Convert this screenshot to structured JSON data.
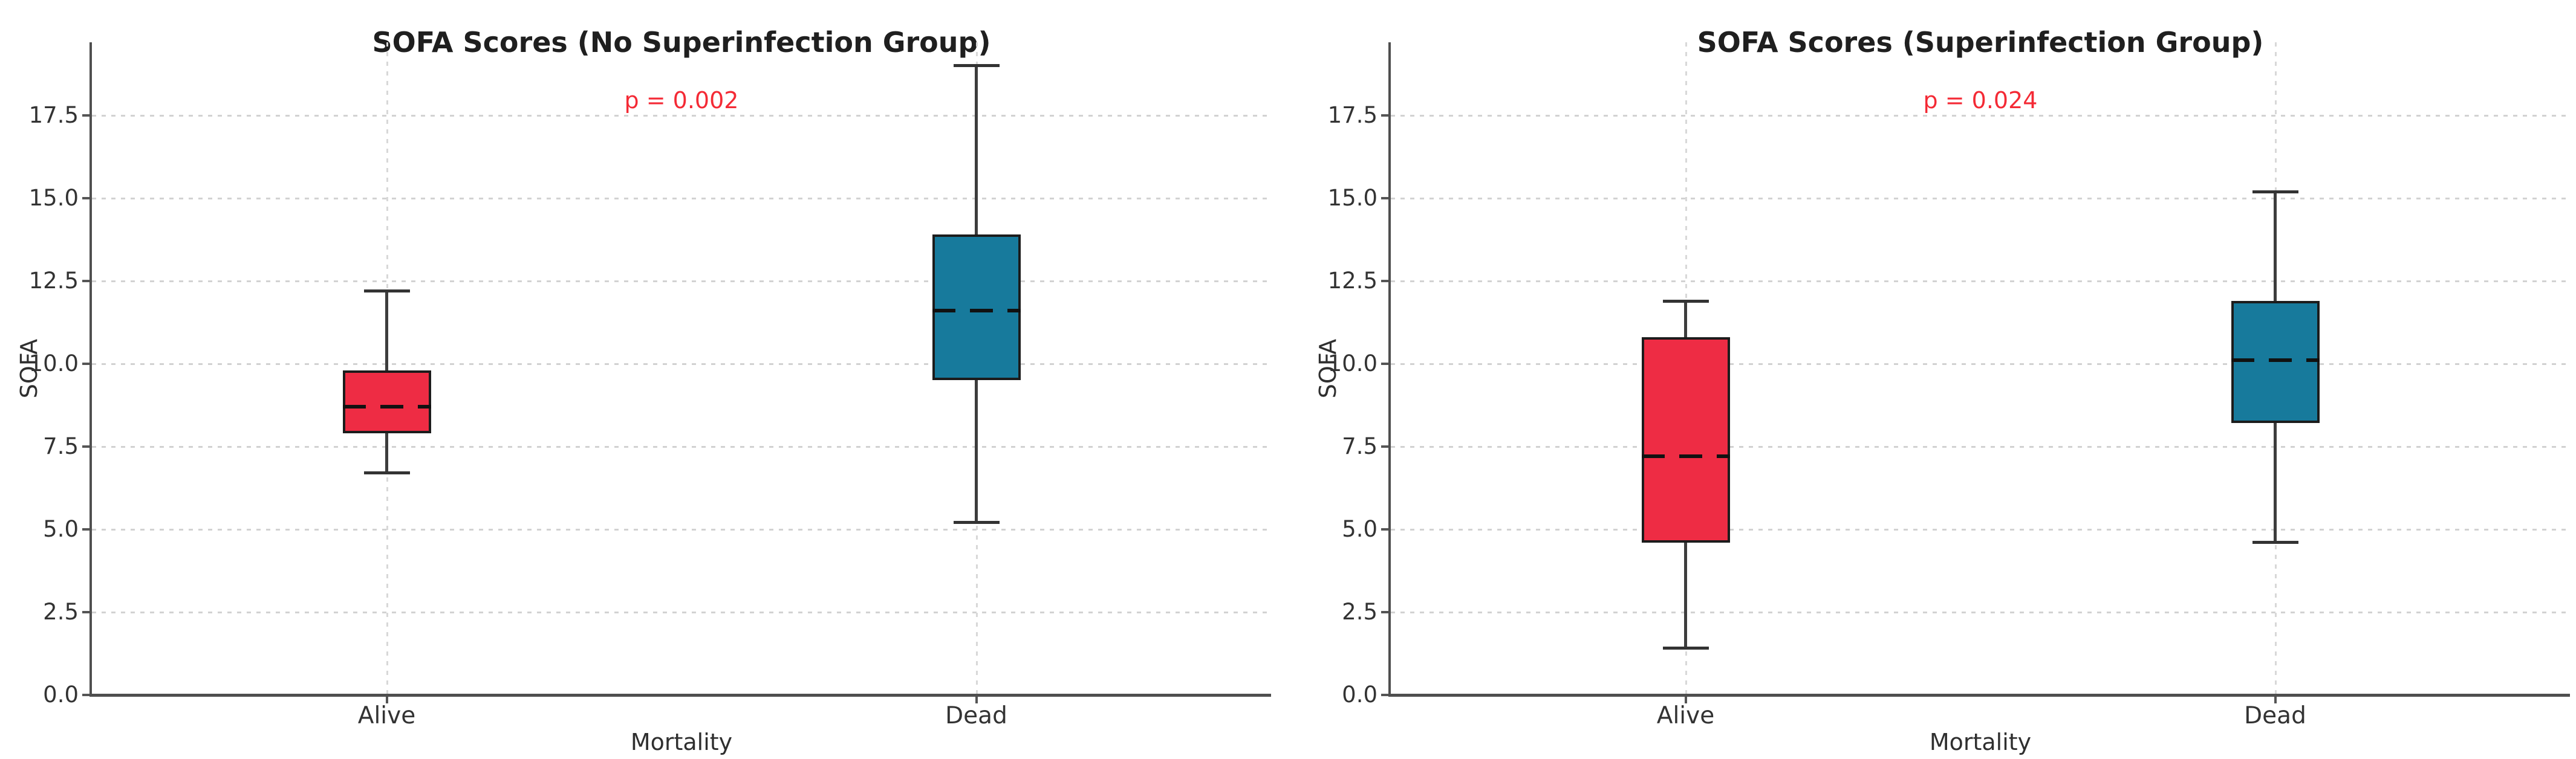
{
  "styles": {
    "background": "#ffffff",
    "box_red": "#ee2c44",
    "box_teal": "#177a9c",
    "p_color": "#f42a35",
    "grid_color": "#d2d2d2",
    "spine_color": "#4f4f4f",
    "text_color": "#2a2a2a"
  },
  "chart_data": [
    {
      "type": "box",
      "title": "SOFA Scores (No Superinfection Group)",
      "p_label": "p = 0.002",
      "xlabel": "Mortality",
      "ylabel": "SOFA",
      "categories": [
        "Alive",
        "Dead"
      ],
      "ytick_labels": [
        "0.0",
        "2.5",
        "5.0",
        "7.5",
        "10.0",
        "12.5",
        "15.0",
        "17.5"
      ],
      "ytick_values": [
        0,
        2.5,
        5,
        7.5,
        10,
        12.5,
        15,
        17.5
      ],
      "ylim": [
        0,
        19.7
      ],
      "grid": "dotted horizontal and vertical",
      "legend": "none",
      "boxes": [
        {
          "category": "Alive",
          "color_key": "box_red",
          "whisker_low": 6.7,
          "q1": 7.9,
          "median": 8.7,
          "q3": 9.8,
          "whisker_high": 12.2
        },
        {
          "category": "Dead",
          "color_key": "box_teal",
          "whisker_low": 5.2,
          "q1": 9.5,
          "median": 11.6,
          "q3": 13.9,
          "whisker_high": 19.0
        }
      ]
    },
    {
      "type": "box",
      "title": "SOFA Scores (Superinfection Group)",
      "p_label": "p = 0.024",
      "xlabel": "Mortality",
      "ylabel": "SOFA",
      "categories": [
        "Alive",
        "Dead"
      ],
      "ytick_labels": [
        "0.0",
        "2.5",
        "5.0",
        "7.5",
        "10.0",
        "12.5",
        "15.0",
        "17.5"
      ],
      "ytick_values": [
        0,
        2.5,
        5,
        7.5,
        10,
        12.5,
        15,
        17.5
      ],
      "ylim": [
        0,
        19.7
      ],
      "grid": "dotted horizontal and vertical",
      "legend": "none",
      "boxes": [
        {
          "category": "Alive",
          "color_key": "box_red",
          "whisker_low": 1.4,
          "q1": 4.6,
          "median": 7.2,
          "q3": 10.8,
          "whisker_high": 11.9
        },
        {
          "category": "Dead",
          "color_key": "box_teal",
          "whisker_low": 4.6,
          "q1": 8.2,
          "median": 10.1,
          "q3": 11.9,
          "whisker_high": 15.2
        }
      ]
    }
  ]
}
